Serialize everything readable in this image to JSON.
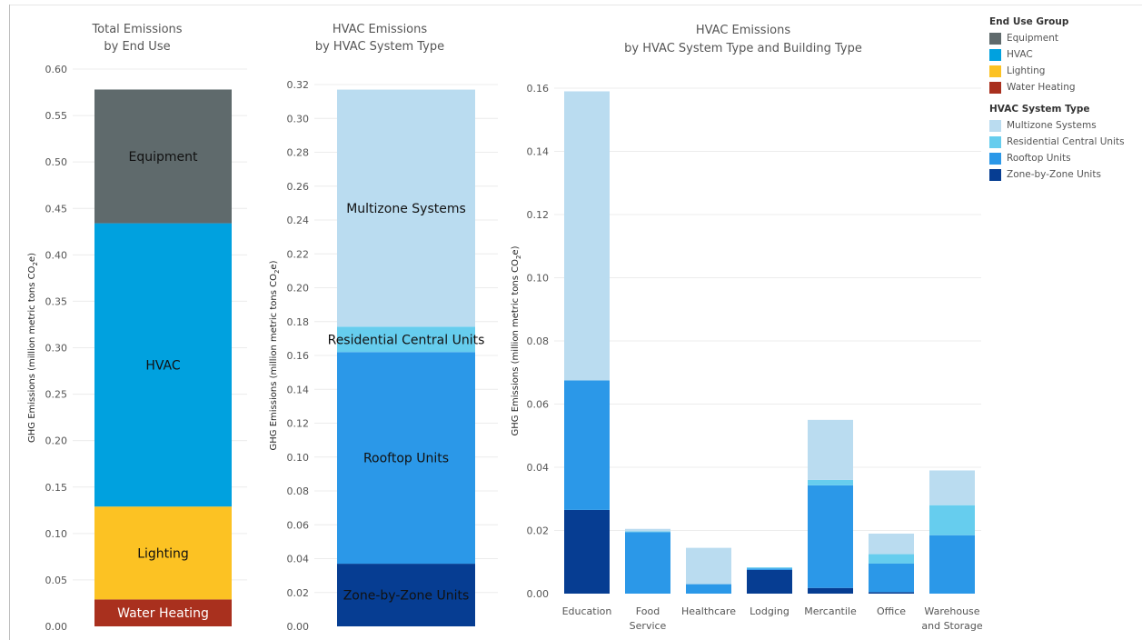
{
  "chart_data": [
    {
      "type": "bar",
      "stacked": true,
      "title": [
        "Total Emissions",
        "by End Use"
      ],
      "ylabel": "GHG Emissions (million metric tons CO₂e)",
      "ylim": [
        0,
        0.6
      ],
      "ticks": [
        "0.00",
        "0.05",
        "0.10",
        "0.15",
        "0.20",
        "0.25",
        "0.30",
        "0.35",
        "0.40",
        "0.45",
        "0.50",
        "0.55",
        "0.60"
      ],
      "grid": true,
      "series": [
        {
          "name": "Water Heating",
          "value": 0.029,
          "color": "#a9301e",
          "label_color": "#ffffff"
        },
        {
          "name": "Lighting",
          "value": 0.1,
          "color": "#fcc223",
          "label_color": "#111111"
        },
        {
          "name": "HVAC",
          "value": 0.305,
          "color": "#00a1df",
          "label_color": "#111111"
        },
        {
          "name": "Equipment",
          "value": 0.144,
          "color": "#5f6a6c",
          "label_color": "#111111"
        }
      ]
    },
    {
      "type": "bar",
      "stacked": true,
      "title": [
        "HVAC Emissions",
        "by HVAC System Type"
      ],
      "ylabel": "GHG Emissions (million metric tons CO₂e)",
      "ylim": [
        0,
        0.32
      ],
      "ticks": [
        "0.00",
        "0.02",
        "0.04",
        "0.06",
        "0.08",
        "0.10",
        "0.12",
        "0.14",
        "0.16",
        "0.18",
        "0.20",
        "0.22",
        "0.24",
        "0.26",
        "0.28",
        "0.30",
        "0.32"
      ],
      "grid": true,
      "series": [
        {
          "name": "Zone-by-Zone Units",
          "value": 0.037,
          "color": "#063d92",
          "label_color": "#111111"
        },
        {
          "name": "Rooftop Units",
          "value": 0.125,
          "color": "#2b98e8",
          "label_color": "#111111"
        },
        {
          "name": "Residential Central Units",
          "value": 0.015,
          "color": "#66cdee",
          "label_color": "#111111"
        },
        {
          "name": "Multizone Systems",
          "value": 0.14,
          "color": "#badcf0",
          "label_color": "#111111"
        }
      ]
    },
    {
      "type": "bar",
      "stacked": true,
      "title": [
        "HVAC Emissions",
        "by HVAC System Type and Building Type"
      ],
      "ylabel": "GHG Emissions (million metric tons CO₂e)",
      "ylim": [
        0,
        0.16
      ],
      "ticks": [
        "0.00",
        "0.02",
        "0.04",
        "0.06",
        "0.08",
        "0.10",
        "0.12",
        "0.14",
        "0.16"
      ],
      "grid": true,
      "categories": [
        [
          "Education"
        ],
        [
          "Food",
          "Service"
        ],
        [
          "Healthcare"
        ],
        [
          "Lodging"
        ],
        [
          "Mercantile"
        ],
        [
          "Office"
        ],
        [
          "Warehouse",
          "and Storage"
        ]
      ],
      "series": [
        {
          "name": "Zone-by-Zone Units",
          "color": "#063d92",
          "values": [
            0.0265,
            0.0,
            0.0,
            0.0075,
            0.0018,
            0.0005,
            0.0
          ]
        },
        {
          "name": "Rooftop Units",
          "color": "#2b98e8",
          "values": [
            0.041,
            0.0195,
            0.003,
            0.0005,
            0.0325,
            0.009,
            0.0185
          ]
        },
        {
          "name": "Residential Central Units",
          "color": "#66cdee",
          "values": [
            0.0,
            0.0002,
            0.0,
            0.0003,
            0.0017,
            0.003,
            0.0095
          ]
        },
        {
          "name": "Multizone Systems",
          "color": "#badcf0",
          "values": [
            0.0915,
            0.0008,
            0.0115,
            0.0,
            0.019,
            0.0065,
            0.011
          ]
        }
      ]
    }
  ],
  "legend": {
    "groups": [
      {
        "title": "End Use Group",
        "items": [
          {
            "label": "Equipment",
            "color": "#5f6a6c"
          },
          {
            "label": "HVAC",
            "color": "#00a1df"
          },
          {
            "label": "Lighting",
            "color": "#fcc223"
          },
          {
            "label": "Water Heating",
            "color": "#a9301e"
          }
        ]
      },
      {
        "title": "HVAC System Type",
        "items": [
          {
            "label": "Multizone Systems",
            "color": "#badcf0"
          },
          {
            "label": "Residential Central Units",
            "color": "#66cdee"
          },
          {
            "label": "Rooftop Units",
            "color": "#2b98e8"
          },
          {
            "label": "Zone-by-Zone Units",
            "color": "#063d92"
          }
        ]
      }
    ]
  }
}
